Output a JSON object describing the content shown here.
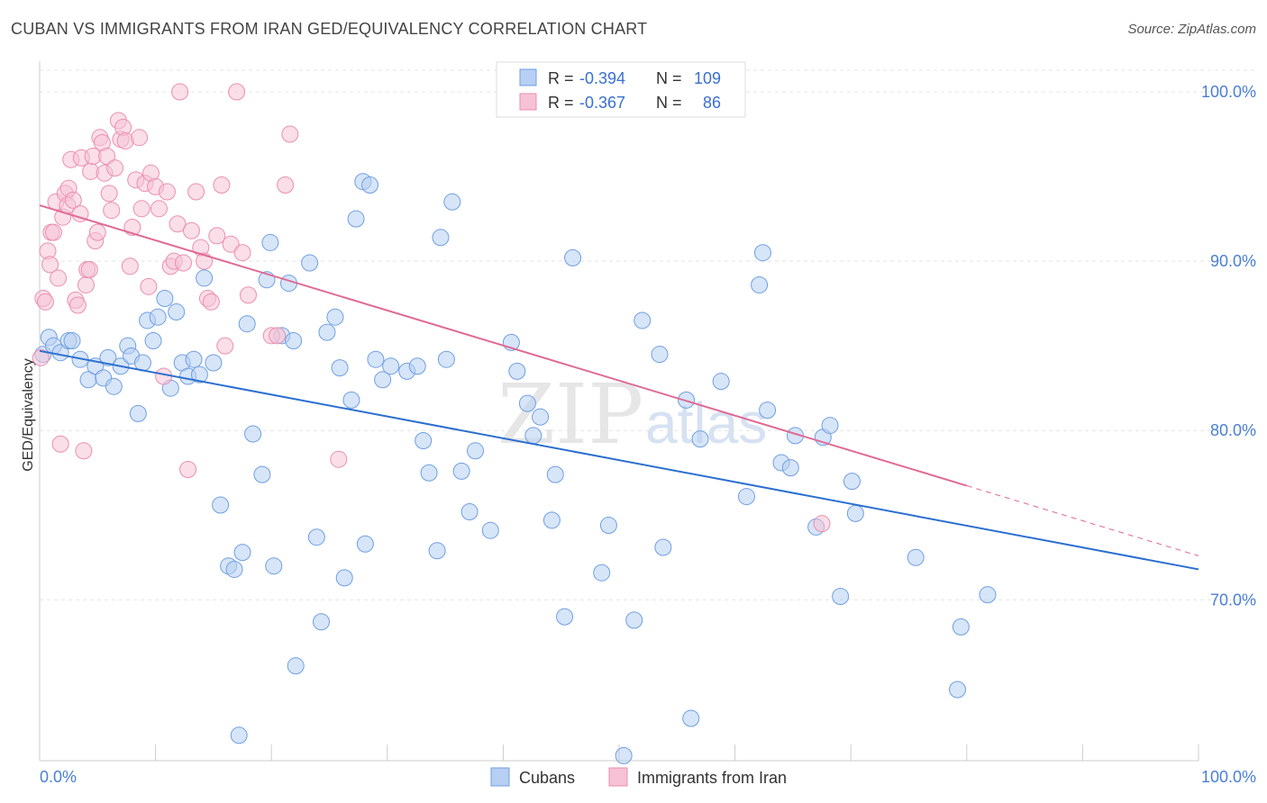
{
  "title": "CUBAN VS IMMIGRANTS FROM IRAN GED/EQUIVALENCY CORRELATION CHART",
  "source": "Source: ZipAtlas.com",
  "watermark": {
    "zip": "ZIP",
    "atlas": "atlas"
  },
  "chart_data": {
    "type": "scatter",
    "ylabel": "GED/Equivalency",
    "xlim": [
      0,
      100
    ],
    "ylim": [
      60.5,
      102.5
    ],
    "y_ticks": [
      {
        "value": 70,
        "label": "70.0%"
      },
      {
        "value": 80,
        "label": "80.0%"
      },
      {
        "value": 90,
        "label": "90.0%"
      },
      {
        "value": 100,
        "label": "100.0%"
      }
    ],
    "x_tick_labels": {
      "left": "0.0%",
      "right": "100.0%"
    },
    "grid": true,
    "legend": {
      "placement": "top-center",
      "rows": [
        {
          "r_label": "R =",
          "r_value": "-0.394",
          "n_label": "N =",
          "n_value": "109"
        },
        {
          "r_label": "R =",
          "r_value": "-0.367",
          "n_label": "N =",
          "n_value": "86"
        }
      ]
    },
    "series": [
      {
        "name": "Cubans",
        "color": "#6f9fe3",
        "fill": "#b7cff2",
        "line_color": "#2b6fd1",
        "trend": {
          "x0": 0,
          "y0": 84.7,
          "x1": 100,
          "y1": 71.8,
          "solid_until": 100
        },
        "points": [
          [
            0.3,
            84.5
          ],
          [
            0.8,
            85.5
          ],
          [
            1.2,
            85.0
          ],
          [
            1.8,
            84.6
          ],
          [
            2.5,
            85.3
          ],
          [
            2.8,
            85.3
          ],
          [
            3.5,
            84.2
          ],
          [
            4.2,
            83.0
          ],
          [
            4.8,
            83.8
          ],
          [
            5.5,
            83.1
          ],
          [
            5.9,
            84.3
          ],
          [
            6.4,
            82.6
          ],
          [
            7.0,
            83.8
          ],
          [
            7.6,
            85.0
          ],
          [
            7.9,
            84.4
          ],
          [
            8.5,
            81.0
          ],
          [
            8.9,
            84.0
          ],
          [
            9.3,
            86.5
          ],
          [
            9.8,
            85.3
          ],
          [
            10.2,
            86.7
          ],
          [
            10.8,
            87.8
          ],
          [
            11.3,
            82.5
          ],
          [
            11.8,
            87.0
          ],
          [
            12.3,
            84.0
          ],
          [
            12.8,
            83.2
          ],
          [
            13.3,
            84.2
          ],
          [
            13.8,
            83.3
          ],
          [
            14.2,
            89.0
          ],
          [
            15.0,
            84.0
          ],
          [
            15.6,
            75.6
          ],
          [
            16.3,
            72.0
          ],
          [
            16.8,
            71.8
          ],
          [
            17.2,
            62.0
          ],
          [
            17.5,
            72.8
          ],
          [
            17.9,
            86.3
          ],
          [
            18.4,
            79.8
          ],
          [
            19.2,
            77.4
          ],
          [
            19.6,
            88.9
          ],
          [
            19.9,
            91.1
          ],
          [
            20.2,
            72.0
          ],
          [
            20.9,
            85.6
          ],
          [
            21.5,
            88.7
          ],
          [
            21.9,
            85.3
          ],
          [
            22.1,
            66.1
          ],
          [
            23.3,
            89.9
          ],
          [
            23.9,
            73.7
          ],
          [
            24.3,
            68.7
          ],
          [
            24.8,
            85.8
          ],
          [
            25.5,
            86.7
          ],
          [
            25.9,
            83.7
          ],
          [
            26.3,
            71.3
          ],
          [
            26.9,
            81.8
          ],
          [
            27.3,
            92.5
          ],
          [
            27.9,
            94.7
          ],
          [
            28.1,
            73.3
          ],
          [
            28.5,
            94.5
          ],
          [
            29.0,
            84.2
          ],
          [
            29.6,
            83.0
          ],
          [
            30.3,
            83.8
          ],
          [
            31.7,
            83.5
          ],
          [
            32.6,
            83.8
          ],
          [
            33.1,
            79.4
          ],
          [
            33.6,
            77.5
          ],
          [
            34.3,
            72.9
          ],
          [
            34.6,
            91.4
          ],
          [
            35.1,
            84.2
          ],
          [
            35.6,
            93.5
          ],
          [
            36.4,
            77.6
          ],
          [
            37.1,
            75.2
          ],
          [
            37.6,
            78.8
          ],
          [
            38.9,
            74.1
          ],
          [
            40.7,
            85.2
          ],
          [
            41.2,
            83.5
          ],
          [
            42.1,
            81.6
          ],
          [
            42.6,
            79.7
          ],
          [
            43.2,
            80.8
          ],
          [
            44.2,
            74.7
          ],
          [
            44.5,
            77.4
          ],
          [
            45.3,
            69.0
          ],
          [
            46.0,
            90.2
          ],
          [
            48.5,
            71.6
          ],
          [
            49.1,
            74.4
          ],
          [
            50.4,
            60.8
          ],
          [
            51.3,
            68.8
          ],
          [
            52.0,
            86.5
          ],
          [
            53.5,
            84.5
          ],
          [
            53.8,
            73.1
          ],
          [
            55.8,
            81.8
          ],
          [
            56.2,
            63.0
          ],
          [
            57.0,
            79.5
          ],
          [
            58.8,
            82.9
          ],
          [
            61.0,
            76.1
          ],
          [
            62.1,
            88.6
          ],
          [
            62.4,
            90.5
          ],
          [
            62.8,
            81.2
          ],
          [
            64.0,
            78.1
          ],
          [
            64.8,
            77.8
          ],
          [
            65.2,
            79.7
          ],
          [
            67.0,
            74.3
          ],
          [
            67.6,
            79.6
          ],
          [
            68.2,
            80.3
          ],
          [
            69.1,
            70.2
          ],
          [
            70.1,
            77.0
          ],
          [
            70.4,
            75.1
          ],
          [
            75.6,
            72.5
          ],
          [
            79.2,
            64.7
          ],
          [
            79.5,
            68.4
          ],
          [
            81.8,
            70.3
          ]
        ],
        "radius": 9
      },
      {
        "name": "Immigrants from Iran",
        "color": "#eb8fb0",
        "fill": "#f6c2d5",
        "line_color": "#e06a95",
        "trend": {
          "x0": 0,
          "y0": 93.3,
          "x1": 100,
          "y1": 72.6,
          "solid_until": 80
        },
        "points": [
          [
            0.1,
            84.3
          ],
          [
            0.3,
            87.8
          ],
          [
            0.5,
            87.6
          ],
          [
            0.7,
            90.6
          ],
          [
            0.9,
            89.8
          ],
          [
            1.0,
            91.7
          ],
          [
            1.2,
            91.7
          ],
          [
            1.4,
            93.5
          ],
          [
            1.6,
            89.0
          ],
          [
            1.8,
            79.2
          ],
          [
            2.0,
            92.6
          ],
          [
            2.2,
            94.0
          ],
          [
            2.4,
            93.3
          ],
          [
            2.5,
            94.3
          ],
          [
            2.7,
            96.0
          ],
          [
            2.9,
            93.6
          ],
          [
            3.1,
            87.7
          ],
          [
            3.3,
            87.4
          ],
          [
            3.5,
            92.8
          ],
          [
            3.6,
            96.1
          ],
          [
            3.8,
            78.8
          ],
          [
            4.0,
            88.6
          ],
          [
            4.1,
            89.5
          ],
          [
            4.3,
            89.5
          ],
          [
            4.4,
            95.3
          ],
          [
            4.6,
            96.2
          ],
          [
            4.8,
            91.2
          ],
          [
            5.0,
            91.7
          ],
          [
            5.2,
            97.3
          ],
          [
            5.4,
            97.0
          ],
          [
            5.6,
            95.2
          ],
          [
            5.8,
            96.2
          ],
          [
            6.0,
            94.0
          ],
          [
            6.2,
            93.0
          ],
          [
            6.5,
            95.5
          ],
          [
            6.8,
            98.3
          ],
          [
            7.0,
            97.2
          ],
          [
            7.2,
            97.9
          ],
          [
            7.4,
            97.1
          ],
          [
            7.8,
            89.7
          ],
          [
            8.0,
            92.0
          ],
          [
            8.3,
            94.8
          ],
          [
            8.6,
            97.3
          ],
          [
            8.8,
            93.1
          ],
          [
            9.1,
            94.6
          ],
          [
            9.4,
            88.5
          ],
          [
            9.6,
            95.2
          ],
          [
            10.0,
            94.4
          ],
          [
            10.3,
            93.1
          ],
          [
            10.7,
            83.2
          ],
          [
            11.0,
            94.1
          ],
          [
            11.3,
            89.7
          ],
          [
            11.6,
            90.0
          ],
          [
            11.9,
            92.2
          ],
          [
            12.1,
            100.0
          ],
          [
            12.4,
            89.9
          ],
          [
            12.8,
            77.7
          ],
          [
            13.1,
            91.8
          ],
          [
            13.5,
            94.1
          ],
          [
            13.9,
            90.8
          ],
          [
            14.2,
            90.0
          ],
          [
            14.5,
            87.8
          ],
          [
            14.8,
            87.6
          ],
          [
            15.3,
            91.5
          ],
          [
            15.7,
            94.5
          ],
          [
            16.0,
            85.0
          ],
          [
            16.5,
            91.0
          ],
          [
            17.0,
            100.0
          ],
          [
            17.5,
            90.5
          ],
          [
            18.0,
            88.0
          ],
          [
            20.0,
            85.6
          ],
          [
            20.5,
            85.6
          ],
          [
            21.2,
            94.5
          ],
          [
            21.6,
            97.5
          ],
          [
            25.8,
            78.3
          ],
          [
            67.5,
            74.5
          ]
        ],
        "radius": 9
      }
    ]
  }
}
